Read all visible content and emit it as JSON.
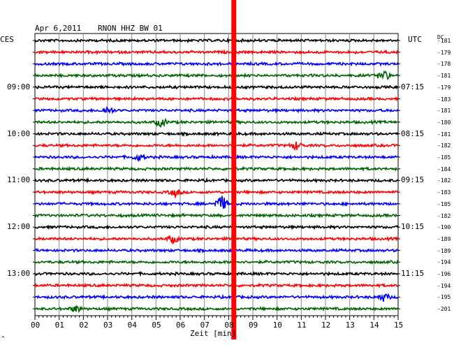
{
  "header": {
    "date": "Apr 6,2011",
    "station": "RNON HHZ BW 01",
    "left_zone": "CES",
    "right_zone": "UTC",
    "dc_label": "DC",
    "corner_mark": "^"
  },
  "chart_data": {
    "type": "line",
    "xlabel": "Zeit [min]",
    "x_ticks": [
      "00",
      "01",
      "02",
      "03",
      "04",
      "05",
      "06",
      "07",
      "08",
      "09",
      "10",
      "11",
      "12",
      "13",
      "14",
      "15"
    ],
    "xlim": [
      0,
      15
    ],
    "trace_colors": [
      "#000000",
      "#ff0000",
      "#0000ff",
      "#006400"
    ],
    "left_hour_labels": [
      {
        "text": "09:00",
        "trace": 4
      },
      {
        "text": "10:00",
        "trace": 8
      },
      {
        "text": "11:00",
        "trace": 12
      },
      {
        "text": "12:00",
        "trace": 16
      },
      {
        "text": "13:00",
        "trace": 20
      }
    ],
    "right_time_labels": [
      {
        "text": "07:15",
        "trace": 4
      },
      {
        "text": "08:15",
        "trace": 8
      },
      {
        "text": "09:15",
        "trace": 12
      },
      {
        "text": "10:15",
        "trace": 16
      },
      {
        "text": "11:15",
        "trace": 20
      }
    ],
    "dc_offsets": [
      "-181",
      "-179",
      "-178",
      "-181",
      "-179",
      "-183",
      "-181",
      "-180",
      "-181",
      "-182",
      "-185",
      "-184",
      "-182",
      "-183",
      "-185",
      "-182",
      "-190",
      "-189",
      "-189",
      "-194",
      "-196",
      "-194",
      "-195",
      "-201"
    ],
    "highlight_minute": 8.2,
    "highlight_color": "#ff0000",
    "events": [
      {
        "trace": 3,
        "minute": 14.4,
        "amp": 2.2
      },
      {
        "trace": 6,
        "minute": 3.0,
        "amp": 1.6
      },
      {
        "trace": 7,
        "minute": 5.2,
        "amp": 1.8
      },
      {
        "trace": 9,
        "minute": 10.8,
        "amp": 1.8
      },
      {
        "trace": 10,
        "minute": 4.3,
        "amp": 1.5
      },
      {
        "trace": 13,
        "minute": 5.8,
        "amp": 1.7
      },
      {
        "trace": 14,
        "minute": 7.7,
        "amp": 3.6
      },
      {
        "trace": 17,
        "minute": 5.7,
        "amp": 1.6
      },
      {
        "trace": 22,
        "minute": 14.4,
        "amp": 1.7
      },
      {
        "trace": 23,
        "minute": 1.7,
        "amp": 1.4
      }
    ]
  }
}
